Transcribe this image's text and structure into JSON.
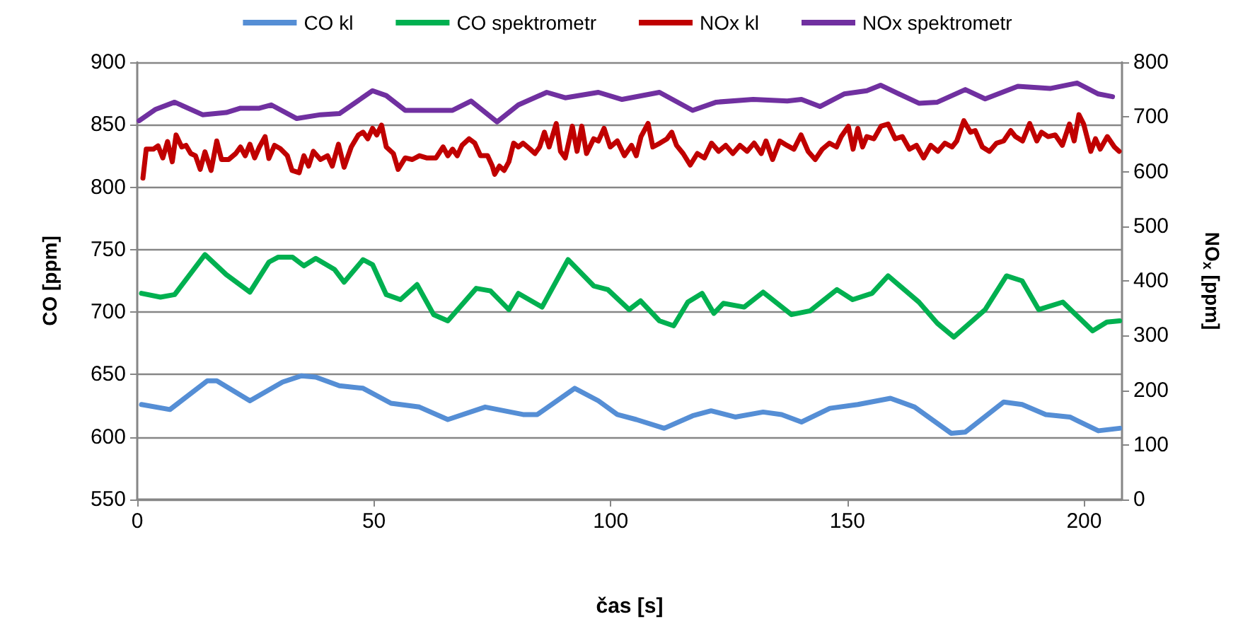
{
  "chart_data": {
    "type": "line",
    "xlabel": "čas [s]",
    "ylabel": "CO [ppm]",
    "y2label": "NO$_{x}$ [ppm]",
    "xlim": [
      0,
      208
    ],
    "xticks": [
      0,
      50,
      100,
      150,
      200
    ],
    "ylim": [
      550,
      900
    ],
    "yticks": [
      550,
      600,
      650,
      700,
      750,
      800,
      850,
      900
    ],
    "y2lim": [
      0,
      800
    ],
    "y2ticks": [
      0,
      100,
      200,
      300,
      400,
      500,
      600,
      700,
      800
    ],
    "grid": "y",
    "legend": "top",
    "marker": "none",
    "line_style": "solid",
    "series": [
      {
        "name": "CO kl",
        "color": "#558ed5",
        "x": [
          0.9,
          6.9,
          14.8,
          16.8,
          23.8,
          30.7,
          34.7,
          37.7,
          42.7,
          47.7,
          53.6,
          59.6,
          65.6,
          73.5,
          81.5,
          84.5,
          92.4,
          97.4,
          101.4,
          105.4,
          111.3,
          117.3,
          121.2,
          126.3,
          132.2,
          136.1,
          140.3,
          146.3,
          152.2,
          159.1,
          164.2,
          171.9,
          174.9,
          183,
          186.9,
          191.9,
          197,
          203,
          207.5
        ],
        "values": [
          626,
          622,
          645,
          645,
          629,
          644,
          649,
          648,
          641,
          639,
          627,
          624,
          614,
          624,
          618,
          618,
          639,
          629,
          618,
          614,
          607,
          617,
          621,
          616,
          620,
          618,
          612,
          623,
          626,
          631,
          624,
          603,
          604,
          628,
          626,
          618,
          616,
          605,
          607
        ]
      },
      {
        "name": "CO spektrometr",
        "color": "#00b050",
        "x": [
          0.9,
          4.9,
          7.9,
          14.3,
          18.8,
          23.8,
          27.8,
          29.8,
          32.8,
          35.2,
          37.7,
          41.7,
          43.7,
          47.7,
          49.7,
          52.6,
          55.6,
          59.1,
          62.6,
          65.6,
          71.6,
          74.6,
          78.5,
          80.5,
          85.5,
          91,
          96.4,
          99.4,
          103.9,
          106.3,
          110.3,
          113.3,
          116.3,
          119.3,
          121.8,
          123.8,
          128.2,
          132.2,
          138.2,
          142.1,
          147.8,
          151.1,
          155.2,
          158.6,
          165.1,
          169,
          172.5,
          179.1,
          183.6,
          186.9,
          190.4,
          195.5,
          201.8,
          204.8,
          207.5
        ],
        "values": [
          715,
          712,
          714,
          746,
          730,
          716,
          740,
          744,
          744,
          737,
          743,
          734,
          724,
          742,
          738,
          714,
          710,
          722,
          698,
          693,
          719,
          717,
          702,
          715,
          704,
          742,
          721,
          718,
          702,
          709,
          693,
          689,
          708,
          715,
          699,
          707,
          704,
          716,
          698,
          701,
          718,
          710,
          715,
          729,
          708,
          691,
          680,
          702,
          729,
          725,
          702,
          708,
          685,
          692,
          693
        ]
      },
      {
        "name": "NOx kl",
        "color": "#c00000",
        "axis": "y2",
        "x": [
          1.2,
          1.9,
          3.4,
          4.4,
          5.4,
          6.4,
          7.4,
          8.2,
          9.4,
          10.3,
          11.3,
          12.3,
          13.3,
          14.3,
          15.6,
          16.8,
          17.8,
          19.3,
          20.8,
          21.8,
          22.8,
          23.8,
          24.8,
          25.8,
          27,
          27.8,
          29,
          30.2,
          31.7,
          32.7,
          34.2,
          35.2,
          36.2,
          37.2,
          38.7,
          40.2,
          41.2,
          42.5,
          43.7,
          45.2,
          46.7,
          47.7,
          48.7,
          49.7,
          50.6,
          51.6,
          52.6,
          54.1,
          55.1,
          56.6,
          58.1,
          59.6,
          61.1,
          63.1,
          64.6,
          65.6,
          66.6,
          67.6,
          68.6,
          70.1,
          71.3,
          72.5,
          74,
          75,
          75.5,
          76.5,
          77.5,
          78.5,
          79.5,
          80.5,
          81.5,
          83,
          84,
          85,
          86,
          87,
          88.5,
          89.4,
          90.4,
          91.9,
          92.9,
          93.9,
          94.9,
          96.4,
          97.4,
          98.6,
          99.9,
          101.4,
          102.9,
          104.4,
          105.4,
          106.4,
          107.9,
          108.9,
          110.4,
          111.9,
          112.9,
          113.9,
          115.3,
          116.8,
          118.3,
          119.8,
          121.3,
          122.8,
          124.3,
          125.8,
          127.3,
          128.8,
          130.3,
          131.8,
          132.8,
          134.2,
          135.7,
          137.2,
          138.7,
          140.2,
          141.7,
          143.2,
          144.7,
          146.2,
          147.7,
          148.7,
          150.2,
          151.2,
          152.2,
          153.2,
          154.1,
          155.6,
          157.1,
          158.6,
          160.1,
          161.6,
          163.1,
          164.6,
          166.1,
          167.6,
          169.1,
          170.6,
          172.1,
          173.1,
          174.6,
          176,
          177,
          178.5,
          180,
          181.5,
          183,
          184.5,
          185.5,
          187,
          188.5,
          190,
          191,
          192.4,
          193.9,
          195.4,
          196.9,
          197.9,
          198.9,
          199.9,
          201.4,
          202.4,
          203.4,
          204.9,
          206.4,
          207.4
        ],
        "values": [
          588,
          641,
          641,
          647,
          625,
          655,
          618,
          667,
          645,
          648,
          633,
          629,
          604,
          636,
          602,
          656,
          622,
          622,
          633,
          645,
          629,
          650,
          625,
          645,
          664,
          624,
          648,
          642,
          629,
          602,
          598,
          629,
          610,
          637,
          622,
          629,
          610,
          650,
          608,
          645,
          667,
          672,
          660,
          679,
          667,
          685,
          645,
          633,
          604,
          625,
          622,
          629,
          625,
          625,
          645,
          629,
          641,
          629,
          648,
          660,
          652,
          629,
          629,
          610,
          595,
          610,
          602,
          618,
          652,
          645,
          652,
          641,
          633,
          645,
          672,
          645,
          688,
          637,
          625,
          683,
          637,
          683,
          633,
          660,
          656,
          679,
          645,
          656,
          629,
          648,
          629,
          664,
          688,
          645,
          652,
          660,
          672,
          648,
          633,
          612,
          633,
          625,
          652,
          637,
          648,
          633,
          648,
          637,
          652,
          633,
          656,
          622,
          656,
          648,
          641,
          667,
          637,
          622,
          641,
          652,
          645,
          664,
          683,
          641,
          679,
          645,
          664,
          660,
          683,
          687,
          660,
          664,
          641,
          648,
          625,
          648,
          637,
          652,
          645,
          656,
          693,
          672,
          675,
          645,
          637,
          652,
          656,
          675,
          664,
          656,
          688,
          656,
          672,
          664,
          667,
          648,
          687,
          656,
          704,
          687,
          637,
          660,
          641,
          664,
          645,
          637
        ]
      },
      {
        "name": "NOx spektrometr",
        "color": "#7030a0",
        "axis": "y2",
        "x": [
          0.4,
          3.9,
          7.9,
          13.8,
          18.8,
          21.8,
          25.8,
          28.3,
          33.7,
          38.7,
          42.7,
          49.7,
          52.6,
          56.6,
          61.6,
          66.6,
          70.5,
          76,
          80.5,
          86.5,
          90.4,
          97.4,
          102.4,
          110.3,
          117.3,
          122.3,
          130.1,
          137.3,
          140.3,
          144.2,
          149.3,
          154.1,
          157,
          165.1,
          169,
          174.9,
          179.1,
          186,
          192.8,
          198.5,
          203,
          206
        ],
        "values": [
          693,
          714,
          727,
          704,
          708,
          716,
          716,
          722,
          697,
          704,
          706,
          748,
          739,
          712,
          712,
          712,
          729,
          691,
          722,
          745,
          735,
          745,
          732,
          745,
          712,
          727,
          732,
          729,
          732,
          719,
          742,
          748,
          758,
          725,
          727,
          750,
          733,
          756,
          752,
          762,
          742,
          737
        ]
      }
    ]
  }
}
